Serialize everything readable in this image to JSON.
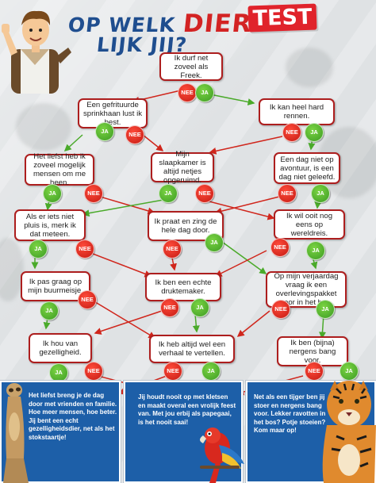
{
  "title": {
    "part1": "OP WELK",
    "highlight": "DIER",
    "part2": "LIJK JIJ?"
  },
  "badge": "TEST",
  "labels": {
    "ja": "JA",
    "nee": "NEE"
  },
  "colors": {
    "title": "#1f4e8f",
    "red": "#d32323",
    "ja": "#3c9b23",
    "nee": "#c41a12",
    "panel": "#1d5fa8",
    "box_border": "#ad1e1e"
  },
  "questions": {
    "q1": "Ik durf net zoveel als Freek.",
    "q2": "Een gefrituurde sprinkhaan lust ik best.",
    "q3": "Ik kan heel hard rennen.",
    "q4": "Het liefst heb ik zoveel mogelijk mensen om me heen.",
    "q5": "Mijn slaapkamer is altijd netjes opgeruimd.",
    "q6": "Een dag niet op avontuur, is een dag niet geleefd.",
    "q7": "Als er iets niet pluis is, merk ik dat meteen.",
    "q8": "Ik praat en zing de hele dag door.",
    "q9": "Ik wil ooit nog eens op wereldreis.",
    "q10": "Ik pas graag op mijn buurmeisje.",
    "q11": "Ik ben een echte druktemaker.",
    "q12": "Op mijn verjaardag vraag ik een overlevingspakket voor in het bos.",
    "q13": "Ik hou van gezelligheid.",
    "q14": "Ik heb altijd wel een verhaal te vertellen.",
    "q15": "Ik ben (bijna) nergens bang voor."
  },
  "results": {
    "left": "Het liefst breng je de dag door met vrienden en familie. Hoe meer mensen, hoe beter. Jij bent een echt gezelligheidsdier, net als het stokstaartje!",
    "middle": "Jij houdt nooit op met kletsen en maakt overal een vrolijk feest van. Met jou erbij als papegaai, is het nooit saai!",
    "right": "Net als een tijger ben jij stoer en nergens bang voor. Lekker ravotten in het bos? Potje stoeien? Kom maar op!"
  }
}
